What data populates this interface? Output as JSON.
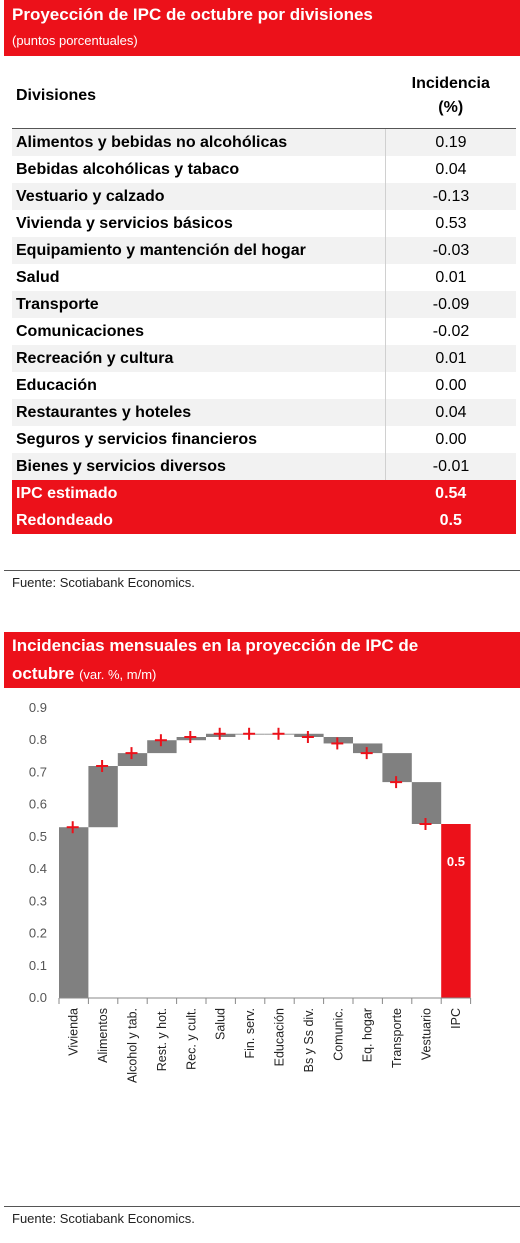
{
  "table_panel": {
    "title": "Proyección de IPC de octubre por divisiones",
    "subtitle": "(puntos porcentuales)",
    "col_division": "Divisiones",
    "col_incidencia_line1": "Incidencia",
    "col_incidencia_line2": "(%)",
    "rows": [
      {
        "division": "Alimentos y bebidas no alcohólicas",
        "value": "0.19"
      },
      {
        "division": "Bebidas alcohólicas y tabaco",
        "value": "0.04"
      },
      {
        "division": "Vestuario y calzado",
        "value": "-0.13"
      },
      {
        "division": "Vivienda y servicios básicos",
        "value": "0.53"
      },
      {
        "division": "Equipamiento y mantención del hogar",
        "value": "-0.03"
      },
      {
        "division": "Salud",
        "value": "0.01"
      },
      {
        "division": "Transporte",
        "value": "-0.09"
      },
      {
        "division": "Comunicaciones",
        "value": "-0.02"
      },
      {
        "division": "Recreación y cultura",
        "value": "0.01"
      },
      {
        "division": "Educación",
        "value": "0.00"
      },
      {
        "division": "Restaurantes y hoteles",
        "value": "0.04"
      },
      {
        "division": "Seguros y servicios financieros",
        "value": "0.00"
      },
      {
        "division": "Bienes y servicios diversos",
        "value": "-0.01"
      }
    ],
    "total_rows": [
      {
        "division": "IPC estimado",
        "value": "0.54"
      },
      {
        "division": "Redondeado",
        "value": "0.5"
      }
    ],
    "source": "Fuente: Scotiabank Economics."
  },
  "chart_panel": {
    "title_line1": "Incidencias mensuales en la proyección de IPC de",
    "title_line2": "octubre",
    "title_units": "(var. %, m/m)",
    "source": "Fuente: Scotiabank Economics."
  },
  "chart_data": {
    "type": "bar",
    "subtype": "waterfall",
    "categories": [
      "Vivienda",
      "Alimentos",
      "Alcohol y tab.",
      "Rest. y hot.",
      "Rec. y cult.",
      "Salud",
      "Fin. serv.",
      "Educación",
      "Bs y Ss div.",
      "Comunic.",
      "Eq. hogar",
      "Transporte",
      "Vestuario",
      "IPC"
    ],
    "increments": [
      0.53,
      0.19,
      0.04,
      0.04,
      0.01,
      0.01,
      0.0,
      0.0,
      -0.01,
      -0.02,
      -0.03,
      -0.09,
      -0.13,
      0.54
    ],
    "cumulative_markers": [
      0.53,
      0.72,
      0.76,
      0.8,
      0.81,
      0.82,
      0.82,
      0.82,
      0.81,
      0.79,
      0.76,
      0.67,
      0.54
    ],
    "total_label": "0.5",
    "yticks": [
      "0.0",
      "0.1",
      "0.2",
      "0.3",
      "0.4",
      "0.5",
      "0.6",
      "0.7",
      "0.8",
      "0.9"
    ],
    "ylim": [
      0,
      0.9
    ],
    "grid": false,
    "colors": {
      "base": "#808080",
      "total": "#ec111a",
      "marker": "#ec111a"
    }
  }
}
